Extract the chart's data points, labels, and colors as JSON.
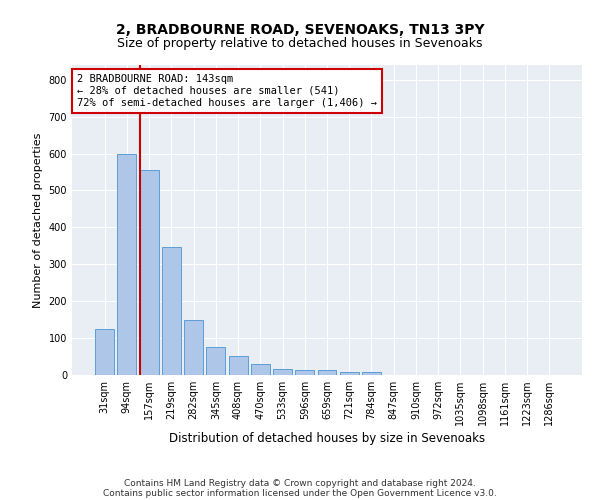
{
  "title": "2, BRADBOURNE ROAD, SEVENOAKS, TN13 3PY",
  "subtitle": "Size of property relative to detached houses in Sevenoaks",
  "xlabel": "Distribution of detached houses by size in Sevenoaks",
  "ylabel": "Number of detached properties",
  "categories": [
    "31sqm",
    "94sqm",
    "157sqm",
    "219sqm",
    "282sqm",
    "345sqm",
    "408sqm",
    "470sqm",
    "533sqm",
    "596sqm",
    "659sqm",
    "721sqm",
    "784sqm",
    "847sqm",
    "910sqm",
    "972sqm",
    "1035sqm",
    "1098sqm",
    "1161sqm",
    "1223sqm",
    "1286sqm"
  ],
  "values": [
    125,
    600,
    555,
    348,
    150,
    75,
    52,
    30,
    15,
    13,
    13,
    7,
    8,
    0,
    0,
    0,
    0,
    0,
    0,
    0,
    0
  ],
  "bar_color": "#aec6e8",
  "bar_edge_color": "#5a9ed6",
  "red_line_index": 2,
  "annotation_text": "2 BRADBOURNE ROAD: 143sqm\n← 28% of detached houses are smaller (541)\n72% of semi-detached houses are larger (1,406) →",
  "annotation_box_color": "#ffffff",
  "annotation_box_edge": "#cc0000",
  "ylim": [
    0,
    840
  ],
  "yticks": [
    0,
    100,
    200,
    300,
    400,
    500,
    600,
    700,
    800
  ],
  "footer1": "Contains HM Land Registry data © Crown copyright and database right 2024.",
  "footer2": "Contains public sector information licensed under the Open Government Licence v3.0.",
  "background_color": "#e8eef4",
  "grid_color": "#ffffff",
  "title_fontsize": 10,
  "subtitle_fontsize": 9,
  "annot_fontsize": 7.5,
  "ylabel_fontsize": 8,
  "xlabel_fontsize": 8.5,
  "tick_fontsize": 7,
  "footer_fontsize": 6.5
}
